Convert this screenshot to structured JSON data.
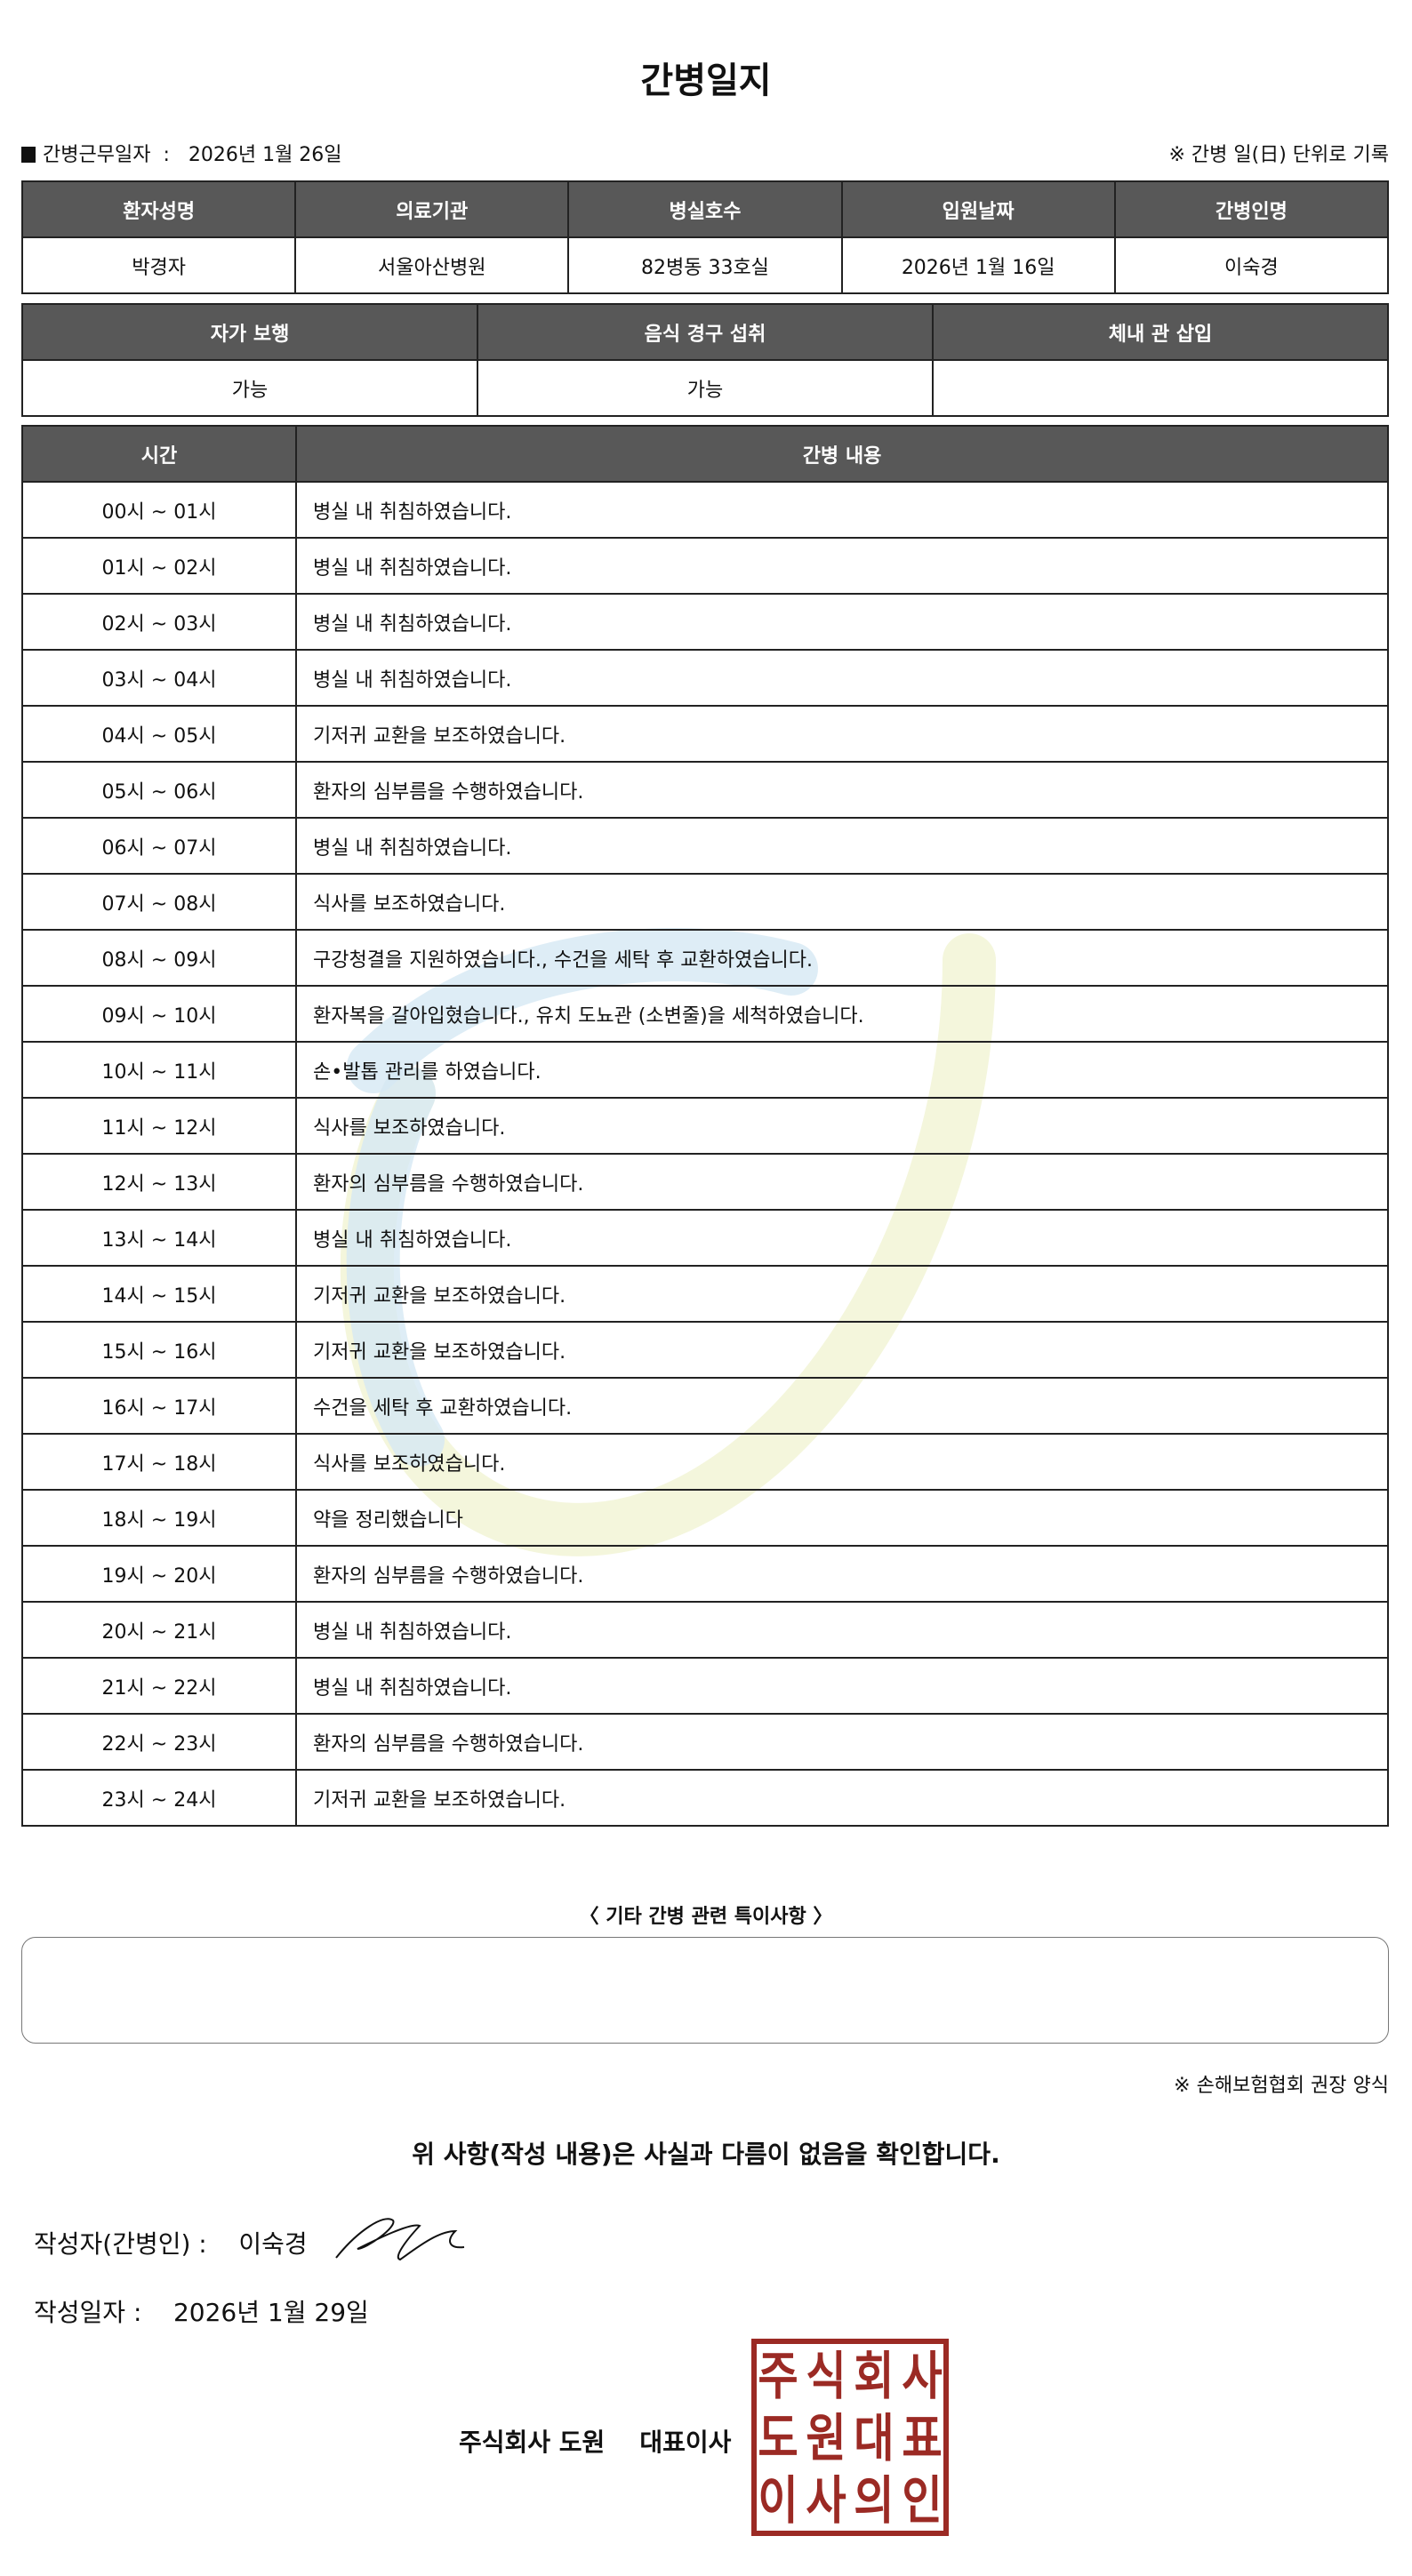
{
  "title": "간병일지",
  "work_date": {
    "label": "간병근무일자",
    "separator": ":",
    "value": "2026년 1월 26일"
  },
  "record_note": "※ 간병 일(日) 단위로 기록",
  "info_table": {
    "headers": [
      "환자성명",
      "의료기관",
      "병실호수",
      "입원날짜",
      "간병인명"
    ],
    "values": [
      "박경자",
      "서울아산병원",
      "82병동 33호실",
      "2026년 1월 16일",
      "이숙경"
    ]
  },
  "status_table": {
    "headers": [
      "자가 보행",
      "음식 경구 섭취",
      "체내 관 삽입"
    ],
    "values": [
      "가능",
      "가능",
      ""
    ]
  },
  "care_table": {
    "headers": [
      "시간",
      "간병 내용"
    ],
    "rows": [
      [
        "00시 ~ 01시",
        "병실 내 취침하였습니다."
      ],
      [
        "01시 ~ 02시",
        "병실 내 취침하였습니다."
      ],
      [
        "02시 ~ 03시",
        "병실 내 취침하였습니다."
      ],
      [
        "03시 ~ 04시",
        "병실 내 취침하였습니다."
      ],
      [
        "04시 ~ 05시",
        "기저귀 교환을 보조하였습니다."
      ],
      [
        "05시 ~ 06시",
        "환자의 심부름을 수행하였습니다."
      ],
      [
        "06시 ~ 07시",
        "병실 내 취침하였습니다."
      ],
      [
        "07시 ~ 08시",
        "식사를 보조하였습니다."
      ],
      [
        "08시 ~ 09시",
        "구강청결을 지원하였습니다., 수건을 세탁 후 교환하였습니다."
      ],
      [
        "09시 ~ 10시",
        "환자복을 갈아입혔습니다., 유치 도뇨관 (소변줄)을 세척하였습니다."
      ],
      [
        "10시 ~ 11시",
        "손•발톱 관리를 하였습니다."
      ],
      [
        "11시 ~ 12시",
        "식사를 보조하였습니다."
      ],
      [
        "12시 ~ 13시",
        "환자의 심부름을 수행하였습니다."
      ],
      [
        "13시 ~ 14시",
        "병실 내 취침하였습니다."
      ],
      [
        "14시 ~ 15시",
        "기저귀 교환을 보조하였습니다."
      ],
      [
        "15시 ~ 16시",
        "기저귀 교환을 보조하였습니다."
      ],
      [
        "16시 ~ 17시",
        "수건을 세탁 후 교환하였습니다."
      ],
      [
        "17시 ~ 18시",
        "식사를 보조하였습니다."
      ],
      [
        "18시 ~ 19시",
        "약을 정리했습니다"
      ],
      [
        "19시 ~ 20시",
        "환자의 심부름을 수행하였습니다."
      ],
      [
        "20시 ~ 21시",
        "병실 내 취침하였습니다."
      ],
      [
        "21시 ~ 22시",
        "병실 내 취침하였습니다."
      ],
      [
        "22시 ~ 23시",
        "환자의 심부름을 수행하였습니다."
      ],
      [
        "23시 ~ 24시",
        "기저귀 교환을 보조하였습니다."
      ]
    ]
  },
  "notes": {
    "label": "〈 기타 간병 관련 특이사항 〉",
    "value": ""
  },
  "form_note": "※ 손해보험협회 권장 양식",
  "confirm": "위 사항(작성 내용)은 사실과 다름이 없음을 확인합니다.",
  "writer": {
    "label": "작성자(간병인) :",
    "value": "이숙경"
  },
  "write_date": {
    "label": "작성일자 :",
    "value": "2026년 1월 29일"
  },
  "company": {
    "name": "주식회사 도원",
    "title": "대표이사"
  },
  "seal": {
    "text": "주식회사도원대표이사의인",
    "color": "#9b2a24"
  },
  "colors": {
    "header_bg": "#585858",
    "watermark_blue": "#d6e8f4",
    "watermark_yellow": "#f4f6dc"
  }
}
